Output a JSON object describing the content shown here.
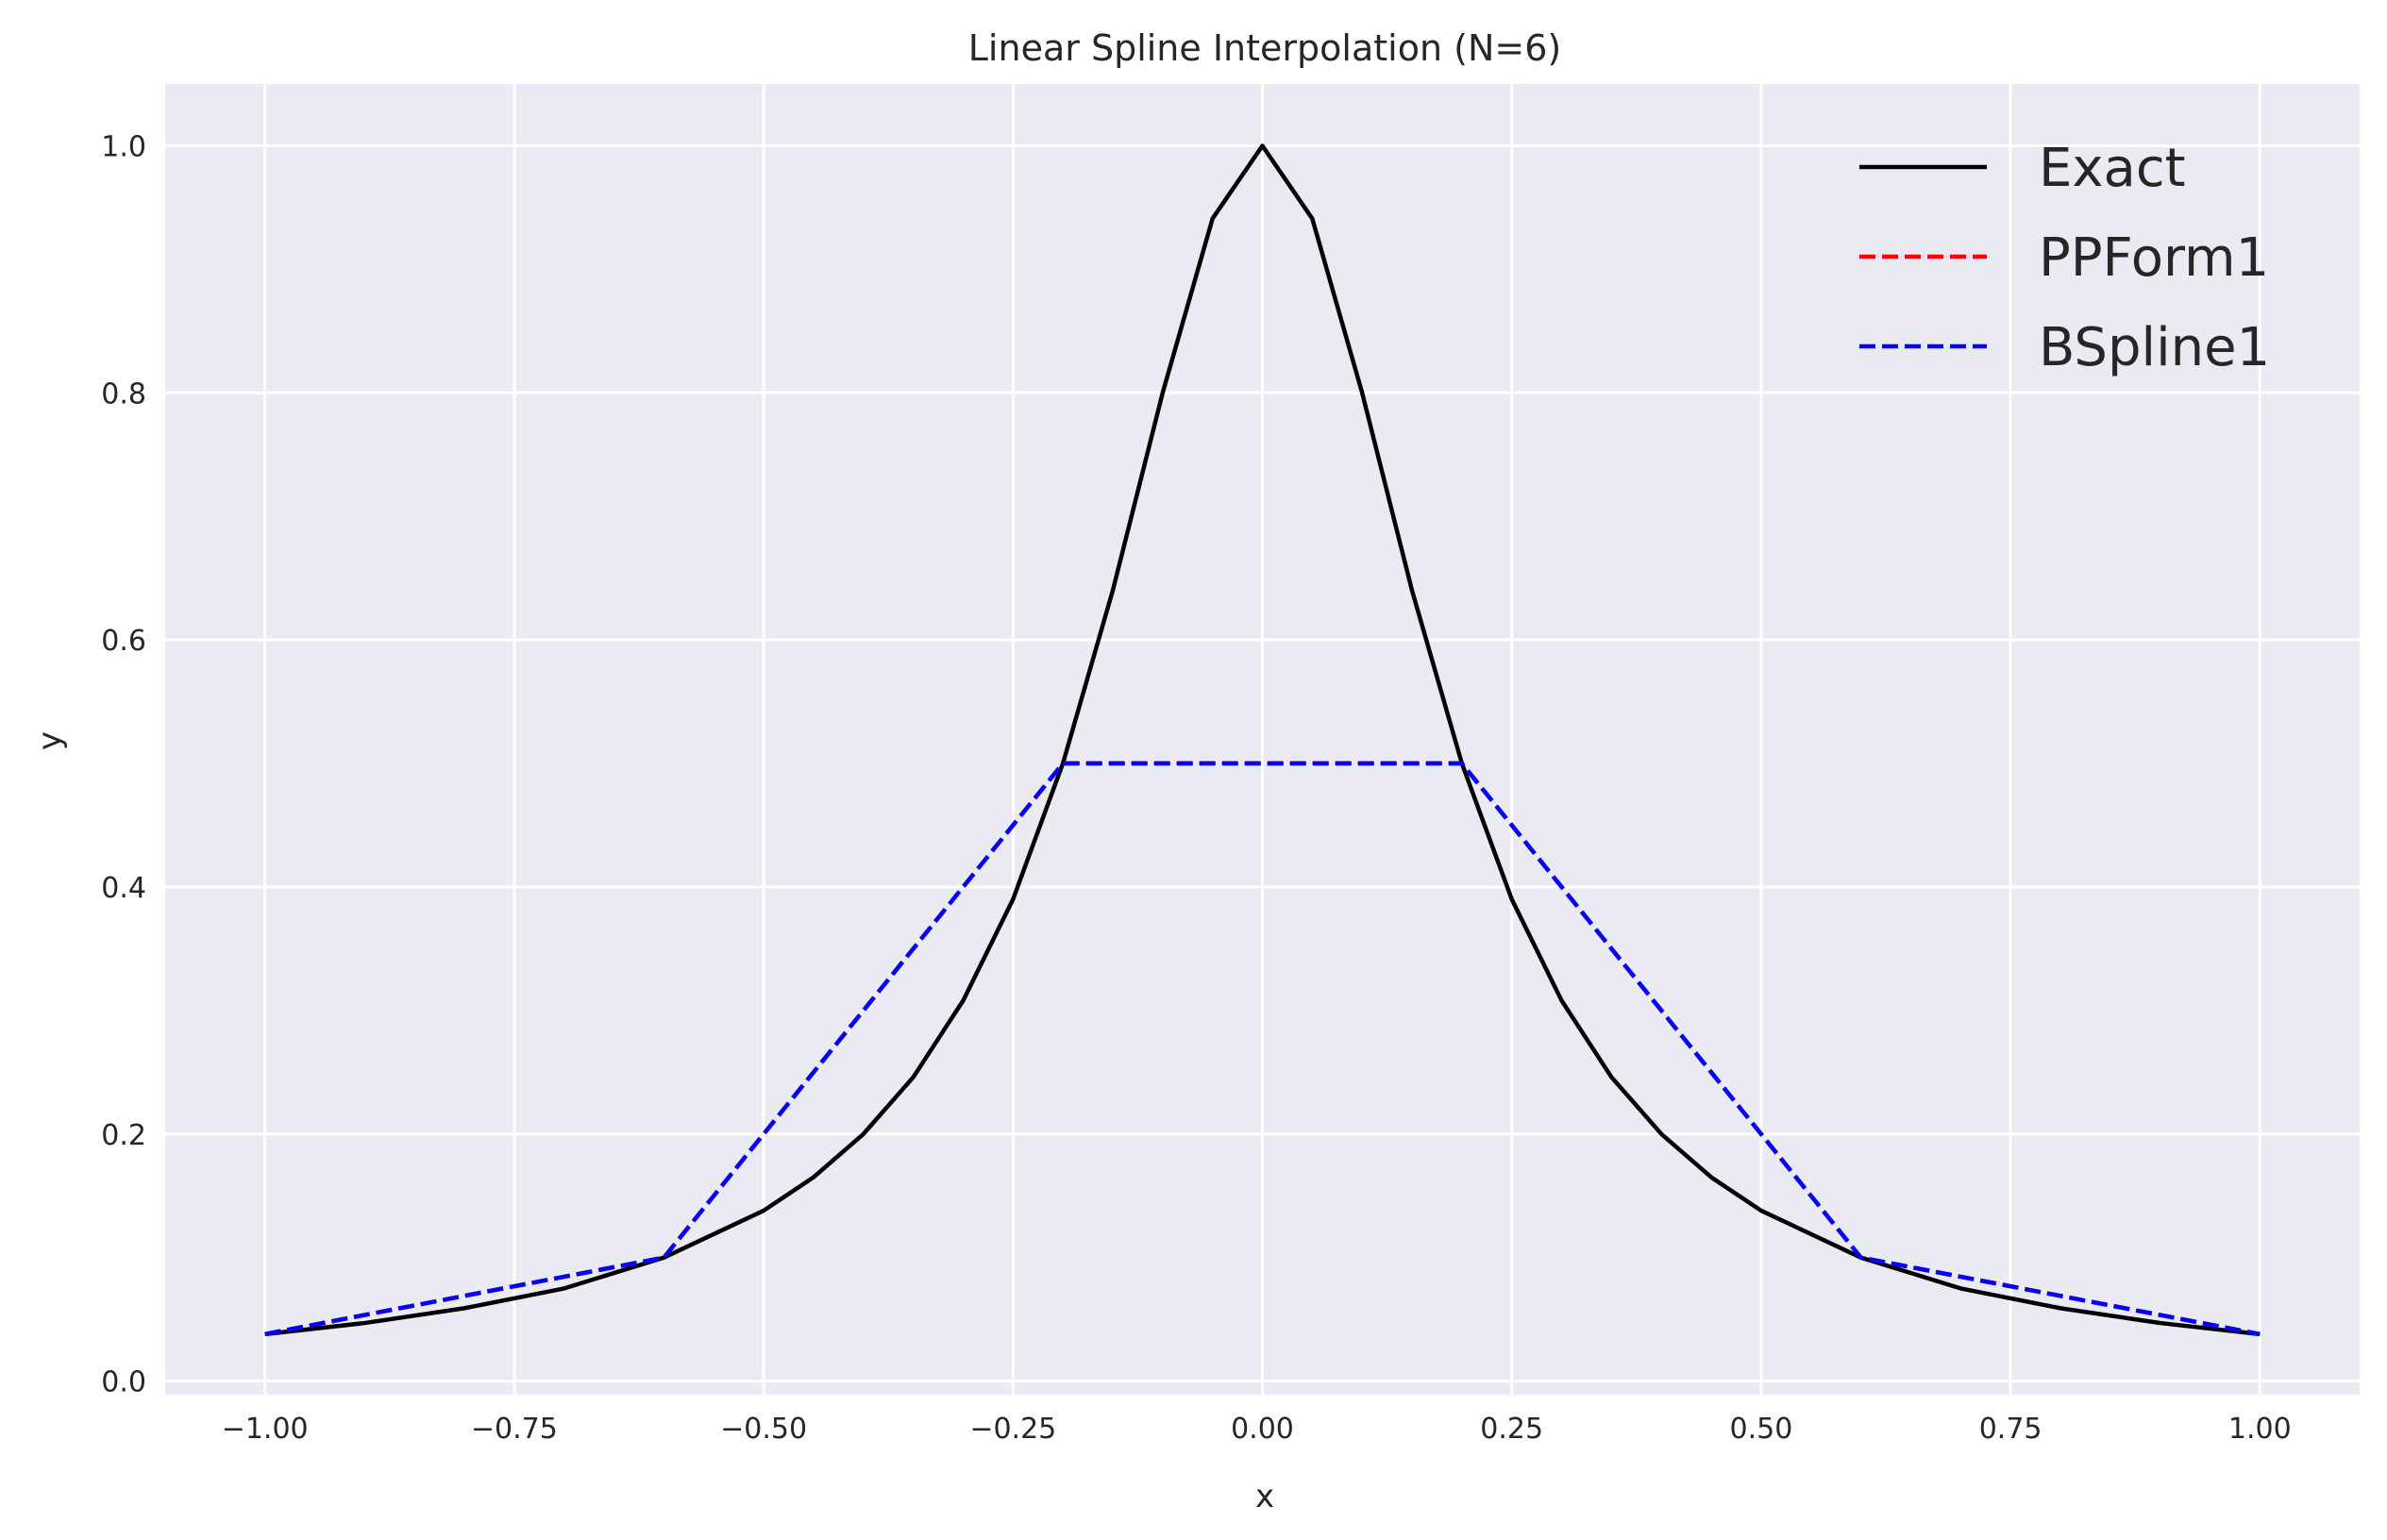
{
  "chart_data": {
    "type": "line",
    "title": "Linear Spline Interpolation (N=6)",
    "xlabel": "x",
    "ylabel": "y",
    "xlim": [
      -1.1,
      1.1
    ],
    "ylim": [
      -0.011,
      1.05
    ],
    "xticks": [
      -1.0,
      -0.75,
      -0.5,
      -0.25,
      0.0,
      0.25,
      0.5,
      0.75,
      1.0
    ],
    "xtick_labels": [
      "−1.00",
      "−0.75",
      "−0.50",
      "−0.25",
      "0.00",
      "0.25",
      "0.50",
      "0.75",
      "1.00"
    ],
    "yticks": [
      0.0,
      0.2,
      0.4,
      0.6,
      0.8,
      1.0
    ],
    "ytick_labels": [
      "0.0",
      "0.2",
      "0.4",
      "0.6",
      "0.8",
      "1.0"
    ],
    "grid": true,
    "legend_position": "top-right",
    "background": "#eaeaf2",
    "grid_color": "#ffffff",
    "series": [
      {
        "name": "Exact",
        "style": "solid",
        "color": "#000000",
        "x": [
          -1.0,
          -0.9,
          -0.8,
          -0.7,
          -0.6,
          -0.5,
          -0.45,
          -0.4,
          -0.35,
          -0.3,
          -0.25,
          -0.2,
          -0.15,
          -0.1,
          -0.05,
          0.0,
          0.05,
          0.1,
          0.15,
          0.2,
          0.25,
          0.3,
          0.35,
          0.4,
          0.45,
          0.5,
          0.6,
          0.7,
          0.8,
          0.9,
          1.0
        ],
        "y": [
          0.038,
          0.047,
          0.059,
          0.075,
          0.1,
          0.138,
          0.165,
          0.2,
          0.246,
          0.308,
          0.39,
          0.5,
          0.64,
          0.8,
          0.941,
          1.0,
          0.941,
          0.8,
          0.64,
          0.5,
          0.39,
          0.308,
          0.246,
          0.2,
          0.165,
          0.138,
          0.1,
          0.075,
          0.059,
          0.047,
          0.038
        ]
      },
      {
        "name": "PPForm1",
        "style": "dashed",
        "color": "#ff0000",
        "x": [
          -1.0,
          -0.6,
          -0.2,
          0.2,
          0.6,
          1.0
        ],
        "y": [
          0.038,
          0.1,
          0.5,
          0.5,
          0.1,
          0.038
        ]
      },
      {
        "name": "BSpline1",
        "style": "dashed",
        "color": "#0000ff",
        "x": [
          -1.0,
          -0.6,
          -0.2,
          0.2,
          0.6,
          1.0
        ],
        "y": [
          0.038,
          0.1,
          0.5,
          0.5,
          0.1,
          0.038
        ]
      }
    ]
  }
}
